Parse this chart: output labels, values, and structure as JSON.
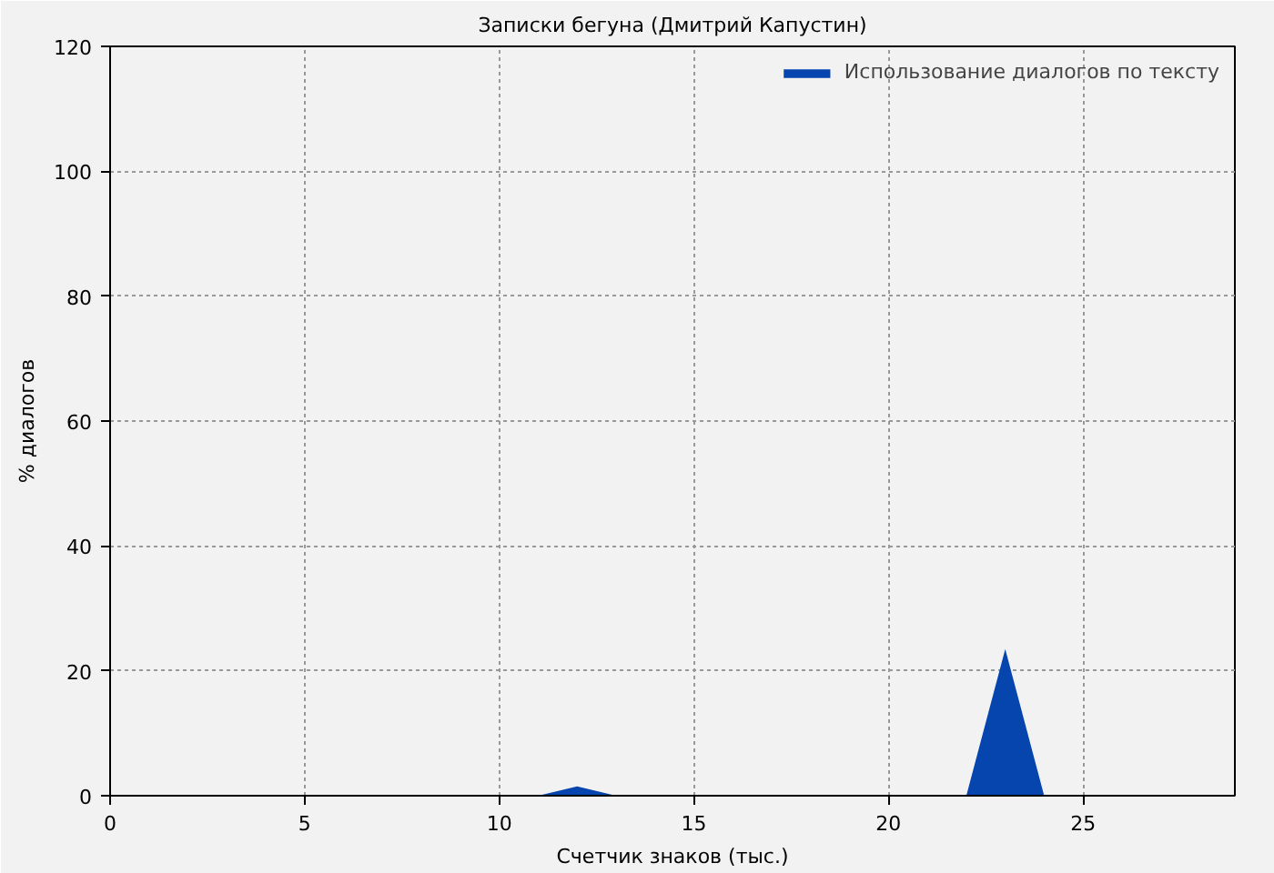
{
  "chart_data": {
    "type": "area",
    "title": "Записки бегуна (Дмитрий Капустин)",
    "xlabel": "Счетчик знаков (тыс.)",
    "ylabel": "% диалогов",
    "x": [
      0,
      1,
      2,
      3,
      4,
      5,
      6,
      7,
      8,
      9,
      10,
      11,
      12,
      13,
      14,
      15,
      16,
      17,
      18,
      19,
      20,
      21,
      22,
      23,
      24,
      25,
      26,
      27,
      28
    ],
    "series": [
      {
        "name": "Использование диалогов по тексту",
        "color": "#0645ad",
        "values": [
          0,
          0,
          0,
          0,
          0,
          0,
          0,
          0,
          0,
          0,
          0,
          0,
          1.5,
          0,
          0,
          0,
          0,
          0,
          0,
          0,
          0,
          0,
          0,
          23.5,
          0,
          0,
          0,
          0,
          0
        ]
      }
    ],
    "xlim": [
      0,
      28.9
    ],
    "ylim": [
      0,
      120
    ],
    "xticks": [
      0,
      5,
      10,
      15,
      20,
      25
    ],
    "yticks": [
      0,
      20,
      40,
      60,
      80,
      100,
      120
    ],
    "grid": true,
    "legend": "top right"
  }
}
